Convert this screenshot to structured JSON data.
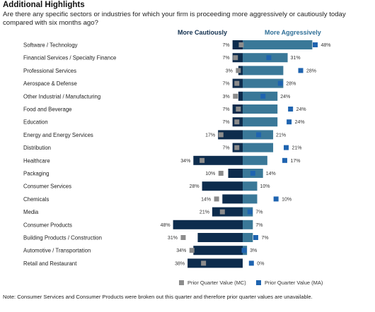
{
  "heading": "Additional Highlights",
  "question": "Are there any specific sectors or industries for which your firm is proceeding more aggressively or cautiously today compared with six months ago?",
  "headers": {
    "left": "More Cautiously",
    "right": "More Aggressively"
  },
  "legend": {
    "mc": "Prior Quarter Value (MC)",
    "ma": "Prior Quarter Value (MA)"
  },
  "note": "Note: Consumer Services and Consumer Products were broken out this quarter and therefore prior quarter values are unavailable.",
  "colors": {
    "cautious": "#0d2c4d",
    "aggressive": "#3a7898",
    "prior_mc": "#8c8c8c",
    "prior_ma": "#1f64b0"
  },
  "chart_data": {
    "type": "bar",
    "categories": [
      "Software / Technology",
      "Financial Services / Specialty Finance",
      "Professional Services",
      "Aerospace & Defense",
      "Other Industrial / Manufacturing",
      "Food and Beverage",
      "Education",
      "Energy and Energy Services",
      "Distribution",
      "Healthcare",
      "Packaging",
      "Consumer Services",
      "Chemicals",
      "Media",
      "Consumer Products",
      "Building Products / Construction",
      "Automotive / Transportation",
      "Retail and Restaurant"
    ],
    "series": [
      {
        "name": "More Cautiously",
        "values": [
          7,
          7,
          3,
          7,
          3,
          7,
          7,
          17,
          7,
          34,
          10,
          28,
          14,
          21,
          48,
          31,
          34,
          38
        ]
      },
      {
        "name": "More Aggressively",
        "values": [
          48,
          31,
          28,
          28,
          24,
          24,
          24,
          21,
          21,
          17,
          14,
          10,
          10,
          7,
          7,
          7,
          3,
          0
        ]
      },
      {
        "name": "Prior Quarter Value (MC)",
        "values": [
          1,
          5,
          3,
          4,
          5,
          3,
          4,
          15,
          4,
          28,
          15,
          null,
          18,
          14,
          null,
          41,
          35,
          27
        ]
      },
      {
        "name": "Prior Quarter Value (MA)",
        "values": [
          50,
          18,
          40,
          26,
          14,
          33,
          32,
          11,
          30,
          29,
          7,
          null,
          23,
          5,
          null,
          9,
          1,
          6
        ]
      }
    ],
    "value_labels": {
      "cautious": [
        "7%",
        "7%",
        "3%",
        "7%",
        "3%",
        "7%",
        "7%",
        "17%",
        "7%",
        "34%",
        "10%",
        "28%",
        "14%",
        "21%",
        "48%",
        "31%",
        "34%",
        "38%"
      ],
      "aggressive": [
        "48%",
        "31%",
        "28%",
        "28%",
        "24%",
        "24%",
        "24%",
        "21%",
        "21%",
        "17%",
        "14%",
        "10%",
        "10%",
        "7%",
        "7%",
        "7%",
        "3%",
        "0%"
      ]
    }
  }
}
